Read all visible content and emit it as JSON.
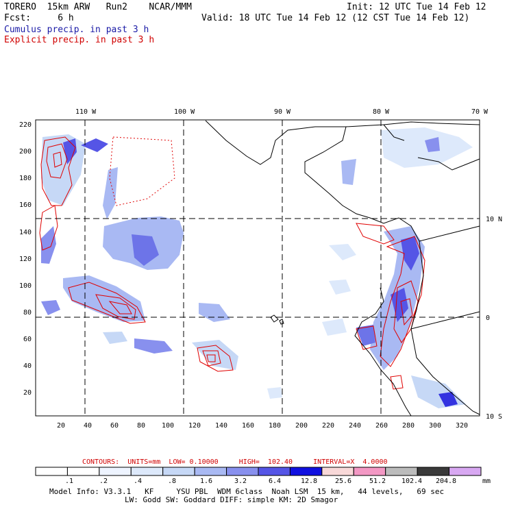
{
  "header": {
    "left1": "TORERO  15km ARW   Run2    NCAR/MMM",
    "left2": "Fcst:     6 h",
    "right1": "Init: 12 UTC Tue 14 Feb 12",
    "right2": "Valid: 18 UTC Tue 14 Feb 12 (12 CST Tue 14 Feb 12)",
    "legend_blue": "Cumulus precip. in past 3 h",
    "legend_red": "Explicit precip. in past 3 h"
  },
  "map": {
    "lon_labels": [
      "110 W",
      "100 W",
      "90 W",
      "80 W",
      "70 W"
    ],
    "lat_labels": [
      "10 N",
      "0",
      "10 S"
    ],
    "y_ticks": [
      "220",
      "200",
      "180",
      "160",
      "140",
      "120",
      "100",
      "80",
      "60",
      "40",
      "20"
    ],
    "x_ticks": [
      "20",
      "40",
      "60",
      "80",
      "100",
      "120",
      "140",
      "160",
      "180",
      "200",
      "220",
      "240",
      "260",
      "280",
      "300",
      "320"
    ]
  },
  "colorbar": {
    "contours_line": "CONTOURS:  UNITS=mm  LOW= 0.10000     HIGH=  102.40     INTERVAL=X  4.0000",
    "levels": [
      ".1",
      ".2",
      ".4",
      ".8",
      "1.6",
      "3.2",
      "6.4",
      "12.8",
      "25.6",
      "51.2",
      "102.4",
      "204.8"
    ],
    "unit": "mm",
    "colors": [
      "#ffffff",
      "#ffffff",
      "#eef4ff",
      "#dde9fb",
      "#c6d8f6",
      "#a9b9f3",
      "#8890ee",
      "#5555e6",
      "#1010e0",
      "#f8d8d8",
      "#f398c4",
      "#bcbcbc",
      "#3a3a3a",
      "#d8a8f2"
    ]
  },
  "footer": {
    "line1": "Model Info: V3.3.1   KF     YSU PBL  WDM 6class  Noah LSM  15 km,   44 levels,   69 sec",
    "line2": "LW: Godd SW: Goddard DIFF: simple KM: 2D Smagor"
  }
}
